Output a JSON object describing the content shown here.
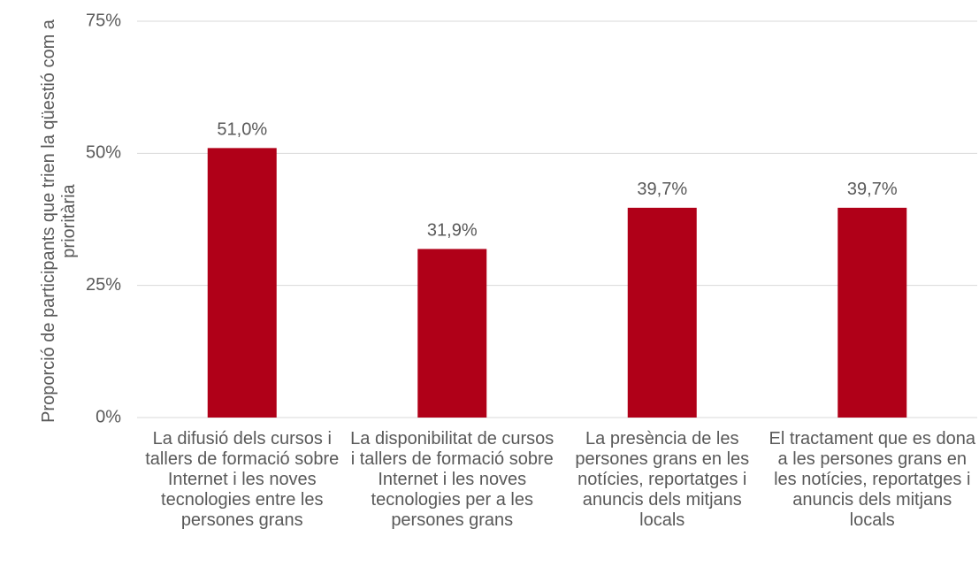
{
  "chart_data": {
    "type": "bar",
    "y_axis_label": "Proporció de participants que trien la qüestió com a prioritària",
    "categories": [
      "La difusió dels cursos i tallers de formació sobre Internet i les noves tecnologies entre les persones grans",
      "La disponibilitat de cursos i tallers de formació sobre Internet i les noves tecnologies per a les persones grans",
      "La presència de les persones grans en les notícies, reportatges i anuncis dels mitjans locals",
      "El tractament que es dona a les persones grans en les notícies, reportatges i anuncis dels mitjans locals"
    ],
    "values": [
      51.0,
      31.9,
      39.7,
      39.7
    ],
    "value_labels": [
      "51,0%",
      "31,9%",
      "39,7%",
      "39,7%"
    ],
    "color": "#b00018",
    "ylim": [
      0,
      75
    ],
    "yticks": [
      {
        "value": 0,
        "label": "0%"
      },
      {
        "value": 25,
        "label": "25%"
      },
      {
        "value": 50,
        "label": "50%"
      },
      {
        "value": 75,
        "label": "75%"
      }
    ],
    "grid": true
  }
}
